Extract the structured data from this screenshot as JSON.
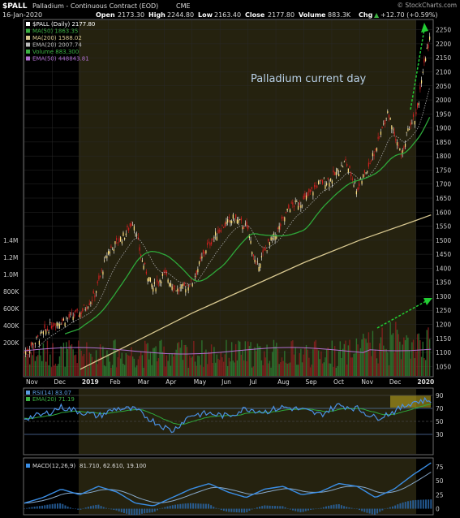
{
  "header": {
    "symbol": "$PALL",
    "name": "Palladium - Continuous Contract (EOD)",
    "exchange": "CME",
    "copyright": "© StockCharts.com",
    "date": "16-Jan-2020",
    "open_label": "Open",
    "open": "2173.30",
    "high_label": "High",
    "high": "2244.80",
    "low_label": "Low",
    "low": "2163.40",
    "close_label": "Close",
    "close": "2177.80",
    "volume_label": "Volume",
    "volume": "883.3K",
    "chg_label": "Chg",
    "chg": "+12.70 (+0.59%)",
    "chg_arrow": "▲"
  },
  "legend": [
    {
      "text": "$PALL (Daily) 2177.80",
      "color": "#ffffff"
    },
    {
      "text": "MA(50) 1863.35",
      "color": "#3cb043"
    },
    {
      "text": "MA(200) 1588.02",
      "color": "#d8c890"
    },
    {
      "text": "EMA(20) 2007.74",
      "color": "#bbbbbb"
    },
    {
      "text": "Volume 883,300",
      "color": "#3cb043"
    },
    {
      "text": "EMA(50) 448843.81",
      "color": "#b070d0"
    }
  ],
  "annotation": "Palladium current day",
  "colors": {
    "up": "#ffffff",
    "down": "#d02020",
    "ma50": "#2ea83a",
    "ma200": "#d8c890",
    "ema20": "#cccccc",
    "highlight": "#3a3415",
    "rsi": "#4a90e2",
    "macd": "#3a8ee6"
  },
  "rsi_legend": [
    {
      "text": "RSI(14) 83.07",
      "color": "#5a9be0"
    },
    {
      "text": "EMA(20) 71.19",
      "color": "#3cb043"
    }
  ],
  "macd_legend": {
    "label": "MACD(12,26,9)",
    "values": "81.710, 62.610, 19.100"
  },
  "chart_data": [
    {
      "type": "line",
      "title": "$PALL (Daily)",
      "x": [
        "Nov",
        "Dec",
        "2019",
        "Feb",
        "Mar",
        "Apr",
        "May",
        "Jun",
        "Jul",
        "Aug",
        "Sep",
        "Oct",
        "Nov",
        "Dec",
        "2020"
      ],
      "ylim": [
        1025,
        2275
      ],
      "price_ticks": [
        1050,
        1100,
        1150,
        1200,
        1250,
        1300,
        1350,
        1400,
        1450,
        1500,
        1550,
        1600,
        1650,
        1700,
        1750,
        1800,
        1850,
        1900,
        1950,
        2000,
        2050,
        2100,
        2150,
        2200,
        2250
      ],
      "volume_ticks": [
        "200K",
        "400K",
        "600K",
        "800K",
        "1.0M",
        "1.2M",
        "1.4M"
      ],
      "series": [
        {
          "name": "$PALL (Daily)",
          "x": [
            0,
            0.5,
            1,
            2,
            2.5,
            3,
            3.6,
            3.9,
            4.2,
            4.6,
            5,
            5.5,
            6,
            6.5,
            7,
            7.5,
            8,
            8.3,
            8.7,
            9,
            9.5,
            10,
            10.5,
            11,
            11.5,
            11.9,
            12.2,
            12.6,
            13,
            13.5,
            13.8,
            14,
            14.2,
            14.4,
            14.55
          ],
          "values": [
            1100,
            1150,
            1200,
            1240,
            1300,
            1460,
            1520,
            1570,
            1430,
            1330,
            1380,
            1320,
            1350,
            1470,
            1540,
            1580,
            1540,
            1400,
            1480,
            1520,
            1620,
            1640,
            1700,
            1720,
            1780,
            1680,
            1740,
            1830,
            1960,
            1800,
            1920,
            1940,
            2050,
            2180,
            2235
          ]
        },
        {
          "name": "MA(50)",
          "x": [
            2,
            3,
            4,
            5,
            6,
            7,
            8,
            9,
            10,
            11,
            12,
            13,
            14,
            14.55
          ],
          "values": [
            1120,
            1200,
            1290,
            1380,
            1370,
            1390,
            1450,
            1480,
            1540,
            1590,
            1650,
            1720,
            1810,
            1865
          ]
        },
        {
          "name": "MA(200)",
          "x": [
            2,
            4,
            6,
            8,
            10,
            12,
            14,
            14.55
          ],
          "values": [
            1040,
            1140,
            1240,
            1330,
            1420,
            1500,
            1570,
            1590
          ]
        }
      ]
    },
    {
      "type": "line",
      "title": "RSI(14)",
      "ylim": [
        0,
        100
      ],
      "ticks": [
        30,
        50,
        70,
        90
      ],
      "series": [
        {
          "name": "RSI(14)",
          "values": [
            55,
            60,
            72,
            65,
            58,
            70,
            68,
            50,
            35,
            60,
            62,
            58,
            70,
            65,
            72,
            68,
            60,
            75,
            70,
            55,
            65,
            80,
            83
          ]
        }
      ]
    },
    {
      "type": "line",
      "title": "MACD(12,26,9)",
      "ylim": [
        -5,
        85
      ],
      "ticks": [
        0,
        25,
        50,
        75
      ],
      "series": [
        {
          "name": "MACD",
          "values": [
            10,
            20,
            35,
            25,
            40,
            30,
            10,
            5,
            20,
            35,
            45,
            30,
            20,
            35,
            40,
            25,
            30,
            45,
            40,
            20,
            35,
            60,
            82
          ]
        }
      ]
    }
  ]
}
